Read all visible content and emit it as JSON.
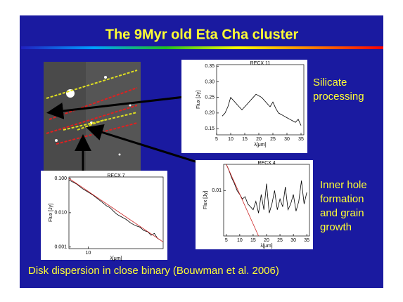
{
  "slide": {
    "title": "The 9Myr old Eta Cha cluster",
    "caption_silicate": [
      "Silicate",
      "processing"
    ],
    "caption_inner_hole": [
      "Inner hole",
      "formation",
      "and grain",
      "growth"
    ],
    "footer": "Disk dispersion in close binary (Bouwman et al. 2006)"
  },
  "chart_data": [
    {
      "type": "line",
      "title": "RECX 11",
      "x_label": "λ[μm]",
      "y_label": "Flux [Jy]",
      "xlim": [
        5,
        36
      ],
      "xticks": [
        5,
        10,
        15,
        20,
        25,
        30,
        35
      ],
      "ylim": [
        0.13,
        0.355
      ],
      "yticks": [
        0.15,
        {
          "value": 0.2,
          "label": "0.20"
        },
        0.25,
        {
          "value": 0.3,
          "label": "0.30"
        },
        0.35
      ],
      "log_x": false,
      "log_y": false,
      "series": [
        {
          "color": "#000000",
          "x": [
            7,
            8,
            9,
            10,
            11,
            12,
            13,
            14,
            15,
            16,
            17,
            18,
            19,
            20,
            21,
            22,
            23,
            24,
            25,
            26,
            27,
            28,
            29,
            30,
            31,
            32,
            33,
            34,
            35
          ],
          "values": [
            0.19,
            0.2,
            0.22,
            0.25,
            0.24,
            0.23,
            0.22,
            0.21,
            0.22,
            0.23,
            0.24,
            0.25,
            0.26,
            0.255,
            0.25,
            0.24,
            0.23,
            0.22,
            0.235,
            0.215,
            0.2,
            0.195,
            0.19,
            0.185,
            0.18,
            0.175,
            0.17,
            0.18,
            0.16
          ]
        }
      ]
    },
    {
      "type": "line",
      "title": "RECX 7",
      "x_label": "λ[μm]",
      "y_label": "Flux [Jy]",
      "xlim": [
        7,
        40
      ],
      "xticks": [
        10
      ],
      "ylim": [
        0.0009,
        0.11
      ],
      "yticks": [
        {
          "value": 0.1,
          "label": "0.100"
        },
        {
          "value": 0.01,
          "label": "0.010"
        },
        0.001
      ],
      "log_x": true,
      "log_y": true,
      "series": [
        {
          "color": "#000000",
          "x": [
            7,
            8,
            9,
            10,
            11,
            12,
            13,
            14,
            15,
            16,
            17,
            18,
            20,
            22,
            24,
            26,
            28,
            30,
            32,
            34,
            36,
            38
          ],
          "values": [
            0.09,
            0.07,
            0.05,
            0.04,
            0.032,
            0.025,
            0.02,
            0.016,
            0.014,
            0.011,
            0.009,
            0.008,
            0.0065,
            0.005,
            0.0042,
            0.0038,
            0.003,
            0.0028,
            0.0022,
            0.0025,
            0.0018,
            0.0016
          ]
        },
        {
          "color": "#cc2222",
          "x": [
            7,
            40
          ],
          "values": [
            0.1,
            0.0014
          ]
        }
      ]
    },
    {
      "type": "line",
      "title": "RECX 4",
      "x_label": "λ[μm]",
      "y_label": "Flux [Jy]",
      "xlim": [
        4,
        36
      ],
      "xticks": [
        5,
        10,
        15,
        20,
        25,
        30,
        35
      ],
      "ylim": [
        0.003,
        0.02
      ],
      "yticks": [
        0.01
      ],
      "log_x": false,
      "log_y": true,
      "series": [
        {
          "color": "#000000",
          "x": [
            5,
            6,
            7,
            8,
            9,
            10,
            11,
            12,
            13,
            14,
            15,
            16,
            17,
            18,
            19,
            20,
            21,
            22,
            23,
            24,
            25,
            26,
            27,
            28,
            29,
            30,
            31,
            32,
            33,
            34,
            35
          ],
          "values": [
            0.02,
            0.017,
            0.014,
            0.012,
            0.01,
            0.009,
            0.008,
            0.0085,
            0.007,
            0.0065,
            0.006,
            0.0075,
            0.0055,
            0.009,
            0.006,
            0.012,
            0.0055,
            0.007,
            0.01,
            0.006,
            0.008,
            0.0065,
            0.011,
            0.006,
            0.007,
            0.009,
            0.0058,
            0.0075,
            0.013,
            0.007,
            0.0095
          ]
        },
        {
          "color": "#cc2222",
          "x": [
            5,
            17
          ],
          "values": [
            0.02,
            0.003
          ]
        }
      ]
    }
  ]
}
